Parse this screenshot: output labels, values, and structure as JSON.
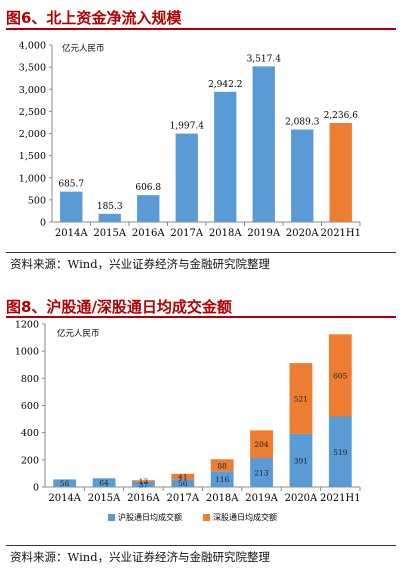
{
  "figures": [
    {
      "title": "图6、北上资金净流入规模",
      "source": "资料来源：Wind，兴业证券经济与金融研究院整理"
    },
    {
      "title": "图8、沪股通/深股通日均成交金额",
      "source": "资料来源：Wind，兴业证券经济与金融研究院整理"
    }
  ],
  "colors": {
    "blue": "#5b9bd5",
    "orange": "#ed7d31",
    "title_red": "#b00000"
  },
  "chart_data": [
    {
      "type": "bar",
      "title": "图6、北上资金净流入规模",
      "unit_label": "亿元人民币",
      "categories": [
        "2014A",
        "2015A",
        "2016A",
        "2017A",
        "2018A",
        "2019A",
        "2020A",
        "2021H1"
      ],
      "values": [
        685.7,
        185.3,
        606.8,
        1997.4,
        2942.2,
        3517.4,
        2089.3,
        2236.6
      ],
      "value_labels": [
        "685.7",
        "185.3",
        "606.8",
        "1,997.4",
        "2,942.2",
        "3,517.4",
        "2,089.3",
        "2,236.6"
      ],
      "bar_colors": [
        "#5b9bd5",
        "#5b9bd5",
        "#5b9bd5",
        "#5b9bd5",
        "#5b9bd5",
        "#5b9bd5",
        "#5b9bd5",
        "#ed7d31"
      ],
      "ylim": [
        0,
        4000
      ],
      "yticks": [
        0,
        500,
        1000,
        1500,
        2000,
        2500,
        3000,
        3500,
        4000
      ],
      "ytick_labels": [
        "0",
        "500",
        "1,000",
        "1,500",
        "2,000",
        "2,500",
        "3,000",
        "3,500",
        "4,000"
      ],
      "grid": false
    },
    {
      "type": "bar",
      "stacked": true,
      "title": "图8、沪股通/深股通日均成交金额",
      "unit_label": "亿元人民币",
      "categories": [
        "2014A",
        "2015A",
        "2016A",
        "2017A",
        "2018A",
        "2019A",
        "2020A",
        "2021H1"
      ],
      "series": [
        {
          "name": "沪股通日均成交额",
          "color": "#5b9bd5",
          "values": [
            56,
            64,
            37,
            56,
            116,
            213,
            391,
            519
          ],
          "labels": [
            "56",
            "64",
            "37",
            "56",
            "116",
            "213",
            "391",
            "519"
          ]
        },
        {
          "name": "深股通日均成交额",
          "color": "#ed7d31",
          "values": [
            0,
            0,
            13,
            41,
            88,
            204,
            521,
            605
          ],
          "labels": [
            "",
            "",
            "13",
            "41",
            "88",
            "204",
            "521",
            "605"
          ]
        }
      ],
      "ylim": [
        0,
        1200
      ],
      "yticks": [
        0,
        200,
        400,
        600,
        800,
        1000,
        1200
      ],
      "ytick_labels": [
        "0",
        "200",
        "400",
        "600",
        "800",
        "1000",
        "1200"
      ],
      "legend_position": "bottom",
      "grid": false
    }
  ]
}
